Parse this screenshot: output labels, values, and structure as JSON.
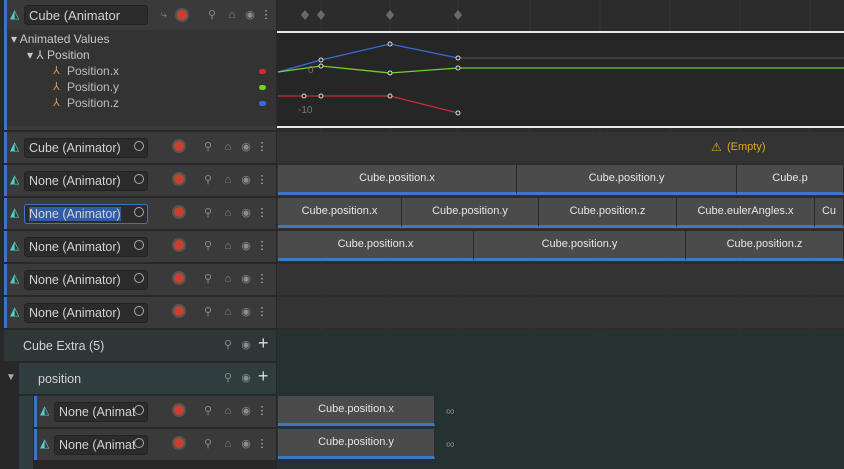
{
  "curve_track": {
    "name": "Cube (Animator",
    "animated_values": "Animated Values",
    "property": "Position",
    "curves": [
      "Position.x",
      "Position.y",
      "Position.z"
    ],
    "curve_axis_labels": [
      0,
      -10
    ]
  },
  "tracks": [
    {
      "name": "Cube (Animator)",
      "empty_label": "(Empty)",
      "clips": []
    },
    {
      "name": "None (Animator)",
      "clips": [
        "Cube.position.x",
        "Cube.position.y",
        "Cube.p"
      ]
    },
    {
      "name": "None (Animator)",
      "clips": [
        "Cube.position.x",
        "Cube.position.y",
        "Cube.position.z",
        "Cube.eulerAngles.x",
        "Cu"
      ]
    },
    {
      "name": "None (Animator)",
      "clips": [
        "Cube.position.x",
        "Cube.position.y",
        "Cube.position.z"
      ]
    },
    {
      "name": "None (Animator)",
      "clips": []
    },
    {
      "name": "None (Animator)",
      "clips": []
    }
  ],
  "group": {
    "name": "Cube Extra (5)",
    "subgroup": "position",
    "tracks": [
      {
        "name": "None (Animat",
        "clips": [
          "Cube.position.x"
        ]
      },
      {
        "name": "None (Animat",
        "clips": [
          "Cube.position.y"
        ]
      }
    ]
  }
}
